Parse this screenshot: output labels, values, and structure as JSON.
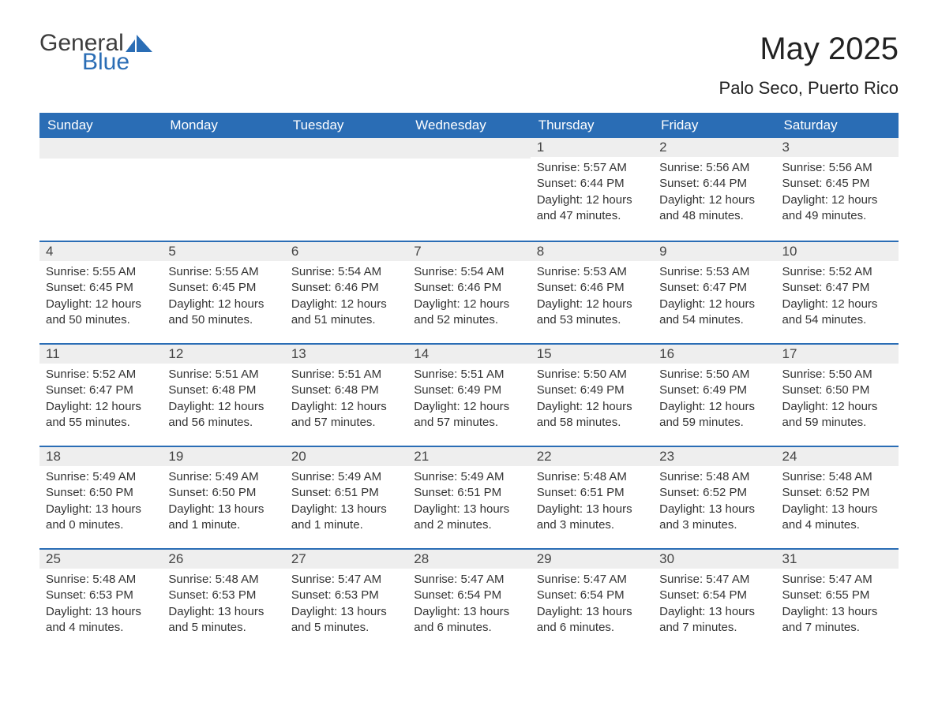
{
  "brand": {
    "general": "General",
    "blue": "Blue",
    "accent_color": "#2a6db5"
  },
  "title": "May 2025",
  "location": "Palo Seco, Puerto Rico",
  "colors": {
    "header_bg": "#2a6db5",
    "header_text": "#ffffff",
    "row_sep": "#2a6db5",
    "daynum_bg": "#eeeeee",
    "body_text": "#333333",
    "page_bg": "#ffffff"
  },
  "typography": {
    "title_size_pt": 30,
    "location_size_pt": 17,
    "header_size_pt": 13,
    "body_size_pt": 11
  },
  "day_headers": [
    "Sunday",
    "Monday",
    "Tuesday",
    "Wednesday",
    "Thursday",
    "Friday",
    "Saturday"
  ],
  "labels": {
    "sunrise": "Sunrise: ",
    "sunset": "Sunset: ",
    "daylight": "Daylight: "
  },
  "weeks": [
    [
      null,
      null,
      null,
      null,
      {
        "n": "1",
        "sunrise": "5:57 AM",
        "sunset": "6:44 PM",
        "daylight": "12 hours and 47 minutes."
      },
      {
        "n": "2",
        "sunrise": "5:56 AM",
        "sunset": "6:44 PM",
        "daylight": "12 hours and 48 minutes."
      },
      {
        "n": "3",
        "sunrise": "5:56 AM",
        "sunset": "6:45 PM",
        "daylight": "12 hours and 49 minutes."
      }
    ],
    [
      {
        "n": "4",
        "sunrise": "5:55 AM",
        "sunset": "6:45 PM",
        "daylight": "12 hours and 50 minutes."
      },
      {
        "n": "5",
        "sunrise": "5:55 AM",
        "sunset": "6:45 PM",
        "daylight": "12 hours and 50 minutes."
      },
      {
        "n": "6",
        "sunrise": "5:54 AM",
        "sunset": "6:46 PM",
        "daylight": "12 hours and 51 minutes."
      },
      {
        "n": "7",
        "sunrise": "5:54 AM",
        "sunset": "6:46 PM",
        "daylight": "12 hours and 52 minutes."
      },
      {
        "n": "8",
        "sunrise": "5:53 AM",
        "sunset": "6:46 PM",
        "daylight": "12 hours and 53 minutes."
      },
      {
        "n": "9",
        "sunrise": "5:53 AM",
        "sunset": "6:47 PM",
        "daylight": "12 hours and 54 minutes."
      },
      {
        "n": "10",
        "sunrise": "5:52 AM",
        "sunset": "6:47 PM",
        "daylight": "12 hours and 54 minutes."
      }
    ],
    [
      {
        "n": "11",
        "sunrise": "5:52 AM",
        "sunset": "6:47 PM",
        "daylight": "12 hours and 55 minutes."
      },
      {
        "n": "12",
        "sunrise": "5:51 AM",
        "sunset": "6:48 PM",
        "daylight": "12 hours and 56 minutes."
      },
      {
        "n": "13",
        "sunrise": "5:51 AM",
        "sunset": "6:48 PM",
        "daylight": "12 hours and 57 minutes."
      },
      {
        "n": "14",
        "sunrise": "5:51 AM",
        "sunset": "6:49 PM",
        "daylight": "12 hours and 57 minutes."
      },
      {
        "n": "15",
        "sunrise": "5:50 AM",
        "sunset": "6:49 PM",
        "daylight": "12 hours and 58 minutes."
      },
      {
        "n": "16",
        "sunrise": "5:50 AM",
        "sunset": "6:49 PM",
        "daylight": "12 hours and 59 minutes."
      },
      {
        "n": "17",
        "sunrise": "5:50 AM",
        "sunset": "6:50 PM",
        "daylight": "12 hours and 59 minutes."
      }
    ],
    [
      {
        "n": "18",
        "sunrise": "5:49 AM",
        "sunset": "6:50 PM",
        "daylight": "13 hours and 0 minutes."
      },
      {
        "n": "19",
        "sunrise": "5:49 AM",
        "sunset": "6:50 PM",
        "daylight": "13 hours and 1 minute."
      },
      {
        "n": "20",
        "sunrise": "5:49 AM",
        "sunset": "6:51 PM",
        "daylight": "13 hours and 1 minute."
      },
      {
        "n": "21",
        "sunrise": "5:49 AM",
        "sunset": "6:51 PM",
        "daylight": "13 hours and 2 minutes."
      },
      {
        "n": "22",
        "sunrise": "5:48 AM",
        "sunset": "6:51 PM",
        "daylight": "13 hours and 3 minutes."
      },
      {
        "n": "23",
        "sunrise": "5:48 AM",
        "sunset": "6:52 PM",
        "daylight": "13 hours and 3 minutes."
      },
      {
        "n": "24",
        "sunrise": "5:48 AM",
        "sunset": "6:52 PM",
        "daylight": "13 hours and 4 minutes."
      }
    ],
    [
      {
        "n": "25",
        "sunrise": "5:48 AM",
        "sunset": "6:53 PM",
        "daylight": "13 hours and 4 minutes."
      },
      {
        "n": "26",
        "sunrise": "5:48 AM",
        "sunset": "6:53 PM",
        "daylight": "13 hours and 5 minutes."
      },
      {
        "n": "27",
        "sunrise": "5:47 AM",
        "sunset": "6:53 PM",
        "daylight": "13 hours and 5 minutes."
      },
      {
        "n": "28",
        "sunrise": "5:47 AM",
        "sunset": "6:54 PM",
        "daylight": "13 hours and 6 minutes."
      },
      {
        "n": "29",
        "sunrise": "5:47 AM",
        "sunset": "6:54 PM",
        "daylight": "13 hours and 6 minutes."
      },
      {
        "n": "30",
        "sunrise": "5:47 AM",
        "sunset": "6:54 PM",
        "daylight": "13 hours and 7 minutes."
      },
      {
        "n": "31",
        "sunrise": "5:47 AM",
        "sunset": "6:55 PM",
        "daylight": "13 hours and 7 minutes."
      }
    ]
  ]
}
